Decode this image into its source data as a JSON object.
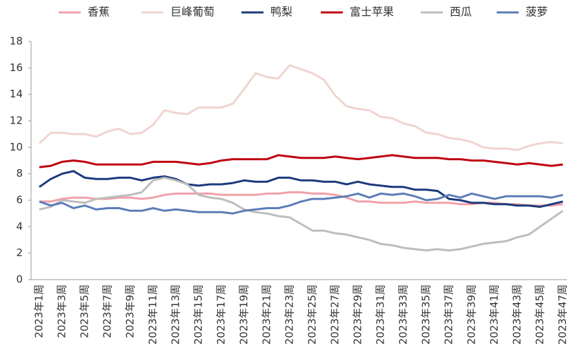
{
  "chart_data": {
    "type": "line",
    "categories": [
      "2023年1周",
      null,
      "2023年3周",
      null,
      "2023年5周",
      null,
      "2023年7周",
      null,
      "2023年9周",
      null,
      "2023年11周",
      null,
      "2023年13周",
      null,
      "2023年15周",
      null,
      "2023年17周",
      null,
      "2023年19周",
      null,
      "2023年21周",
      null,
      "2023年23周",
      null,
      "2023年25周",
      null,
      "2023年27周",
      null,
      "2023年29周",
      null,
      "2023年31周",
      null,
      "2023年33周",
      null,
      "2023年35周",
      null,
      "2023年37周",
      null,
      "2023年39周",
      null,
      "2023年41周",
      null,
      "2023年43周",
      null,
      "2023年45周",
      null,
      "2023年47周"
    ],
    "series": [
      {
        "name": "香蕉",
        "color": "#f2a0a8",
        "values": [
          5.9,
          5.9,
          6.1,
          6.2,
          6.2,
          6.1,
          6.1,
          6.2,
          6.2,
          6.1,
          6.2,
          6.4,
          6.5,
          6.5,
          6.5,
          6.5,
          6.4,
          6.4,
          6.4,
          6.4,
          6.5,
          6.5,
          6.6,
          6.6,
          6.5,
          6.5,
          6.4,
          6.2,
          5.9,
          5.9,
          5.8,
          5.8,
          5.8,
          5.9,
          5.8,
          5.8,
          5.8,
          5.7,
          5.7,
          5.8,
          5.8,
          5.7,
          5.7,
          5.6,
          5.6,
          5.6,
          5.7
        ]
      },
      {
        "name": "巨峰葡萄",
        "color": "#f0d4d0",
        "values": [
          10.3,
          11.1,
          11.1,
          11.0,
          11.0,
          10.8,
          11.2,
          11.4,
          11.0,
          11.1,
          11.7,
          12.8,
          12.6,
          12.5,
          13.0,
          13.0,
          13.0,
          13.3,
          14.4,
          15.6,
          15.3,
          15.2,
          16.2,
          15.9,
          15.6,
          15.1,
          13.9,
          13.1,
          12.9,
          12.8,
          12.3,
          12.2,
          11.8,
          11.6,
          11.1,
          11.0,
          10.7,
          10.6,
          10.4,
          10.0,
          9.9,
          9.9,
          9.8,
          10.1,
          10.3,
          10.4,
          10.3
        ]
      },
      {
        "name": "鸭梨",
        "color": "#1a3a7c",
        "values": [
          7.0,
          7.6,
          8.0,
          8.2,
          7.7,
          7.6,
          7.6,
          7.7,
          7.7,
          7.5,
          7.7,
          7.8,
          7.6,
          7.2,
          7.1,
          7.2,
          7.2,
          7.3,
          7.5,
          7.4,
          7.4,
          7.7,
          7.7,
          7.5,
          7.5,
          7.4,
          7.4,
          7.2,
          7.4,
          7.2,
          7.1,
          7.0,
          7.0,
          6.8,
          6.8,
          6.7,
          6.1,
          6.0,
          5.8,
          5.8,
          5.7,
          5.7,
          5.6,
          5.6,
          5.5,
          5.7,
          5.9
        ]
      },
      {
        "name": "富士苹果",
        "color": "#c00010",
        "values": [
          8.5,
          8.6,
          8.9,
          9.0,
          8.9,
          8.7,
          8.7,
          8.7,
          8.7,
          8.7,
          8.9,
          8.9,
          8.9,
          8.8,
          8.7,
          8.8,
          9.0,
          9.1,
          9.1,
          9.1,
          9.1,
          9.4,
          9.3,
          9.2,
          9.2,
          9.2,
          9.3,
          9.2,
          9.1,
          9.2,
          9.3,
          9.4,
          9.3,
          9.2,
          9.2,
          9.2,
          9.1,
          9.1,
          9.0,
          9.0,
          8.9,
          8.8,
          8.7,
          8.8,
          8.7,
          8.6,
          8.7
        ]
      },
      {
        "name": "西瓜",
        "color": "#bdbdbd",
        "values": [
          5.3,
          5.5,
          6.0,
          5.9,
          5.8,
          6.1,
          6.2,
          6.3,
          6.4,
          6.6,
          7.5,
          7.7,
          7.5,
          7.2,
          6.4,
          6.2,
          6.1,
          5.8,
          5.3,
          5.1,
          5.0,
          4.8,
          4.7,
          4.2,
          3.7,
          3.7,
          3.5,
          3.4,
          3.2,
          3.0,
          2.7,
          2.6,
          2.4,
          2.3,
          2.2,
          2.3,
          2.2,
          2.3,
          2.5,
          2.7,
          2.8,
          2.9,
          3.2,
          3.4,
          4.0,
          4.6,
          5.2
        ]
      },
      {
        "name": "菠萝",
        "color": "#5b7db8",
        "values": [
          5.9,
          5.6,
          5.8,
          5.4,
          5.6,
          5.3,
          5.4,
          5.4,
          5.2,
          5.2,
          5.4,
          5.2,
          5.3,
          5.2,
          5.1,
          5.1,
          5.1,
          5.0,
          5.2,
          5.3,
          5.4,
          5.4,
          5.6,
          5.9,
          6.1,
          6.1,
          6.2,
          6.3,
          6.5,
          6.2,
          6.5,
          6.4,
          6.5,
          6.3,
          6.0,
          6.1,
          6.4,
          6.2,
          6.5,
          6.3,
          6.1,
          6.3,
          6.3,
          6.3,
          6.3,
          6.2,
          6.4
        ]
      }
    ],
    "ylim": [
      0,
      18
    ],
    "yticks": [
      0,
      2,
      4,
      6,
      8,
      10,
      12,
      14,
      16,
      18
    ],
    "grid": false,
    "legend": "top"
  }
}
